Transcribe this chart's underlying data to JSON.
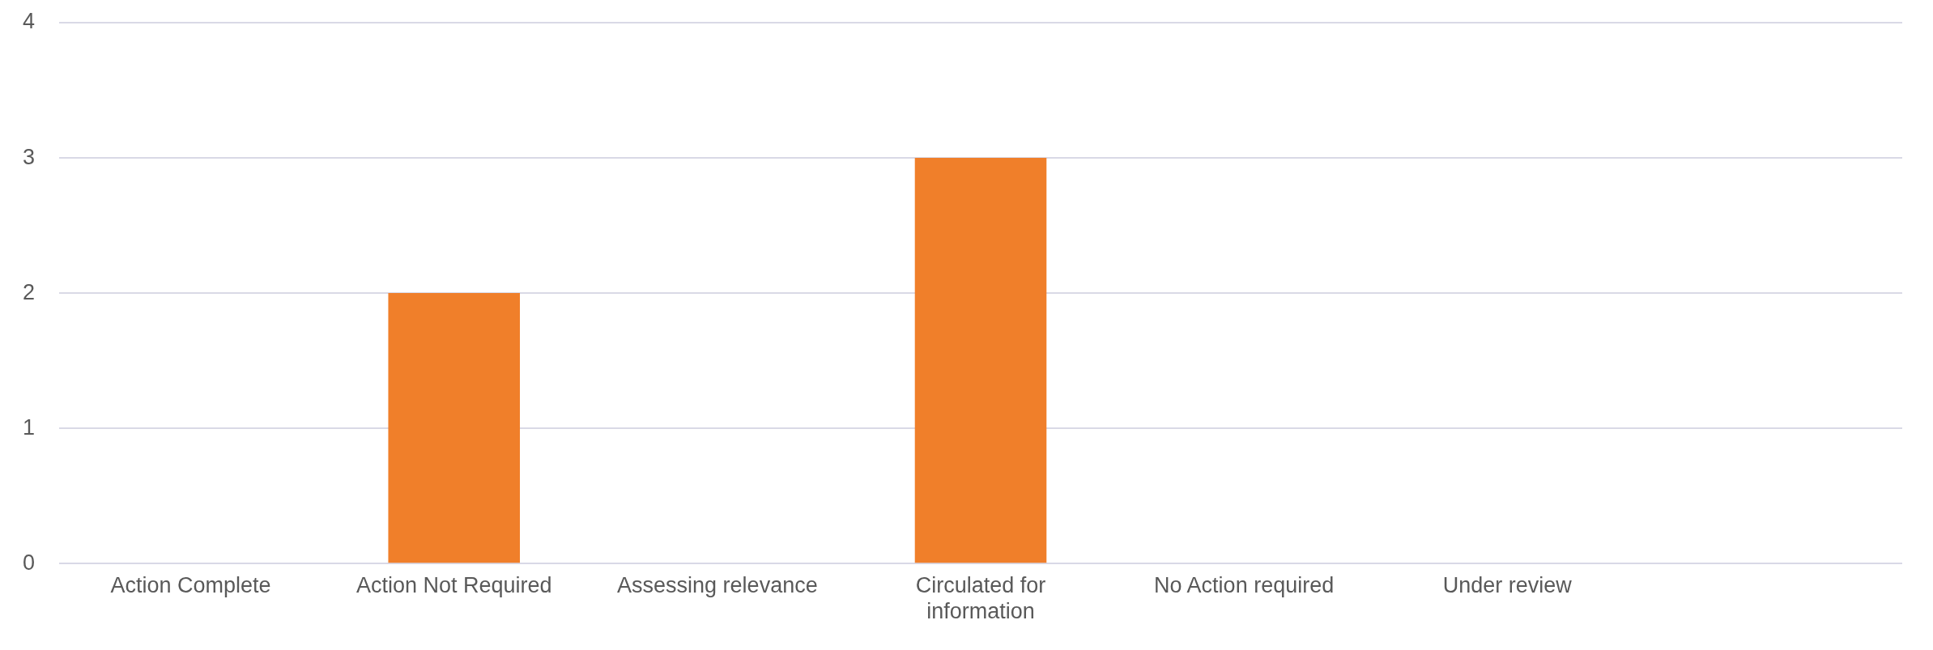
{
  "chart_data": {
    "type": "bar",
    "categories": [
      "Action Complete",
      "Action Not Required",
      "Assessing relevance",
      "Circulated for information",
      "No Action required",
      "Under review",
      null
    ],
    "values": [
      0,
      2,
      0,
      3,
      0,
      0,
      0
    ],
    "color": "#f07f2a",
    "ylim": [
      0,
      4
    ],
    "yticks": [
      0,
      1,
      2,
      3,
      4
    ],
    "grid": "y"
  }
}
